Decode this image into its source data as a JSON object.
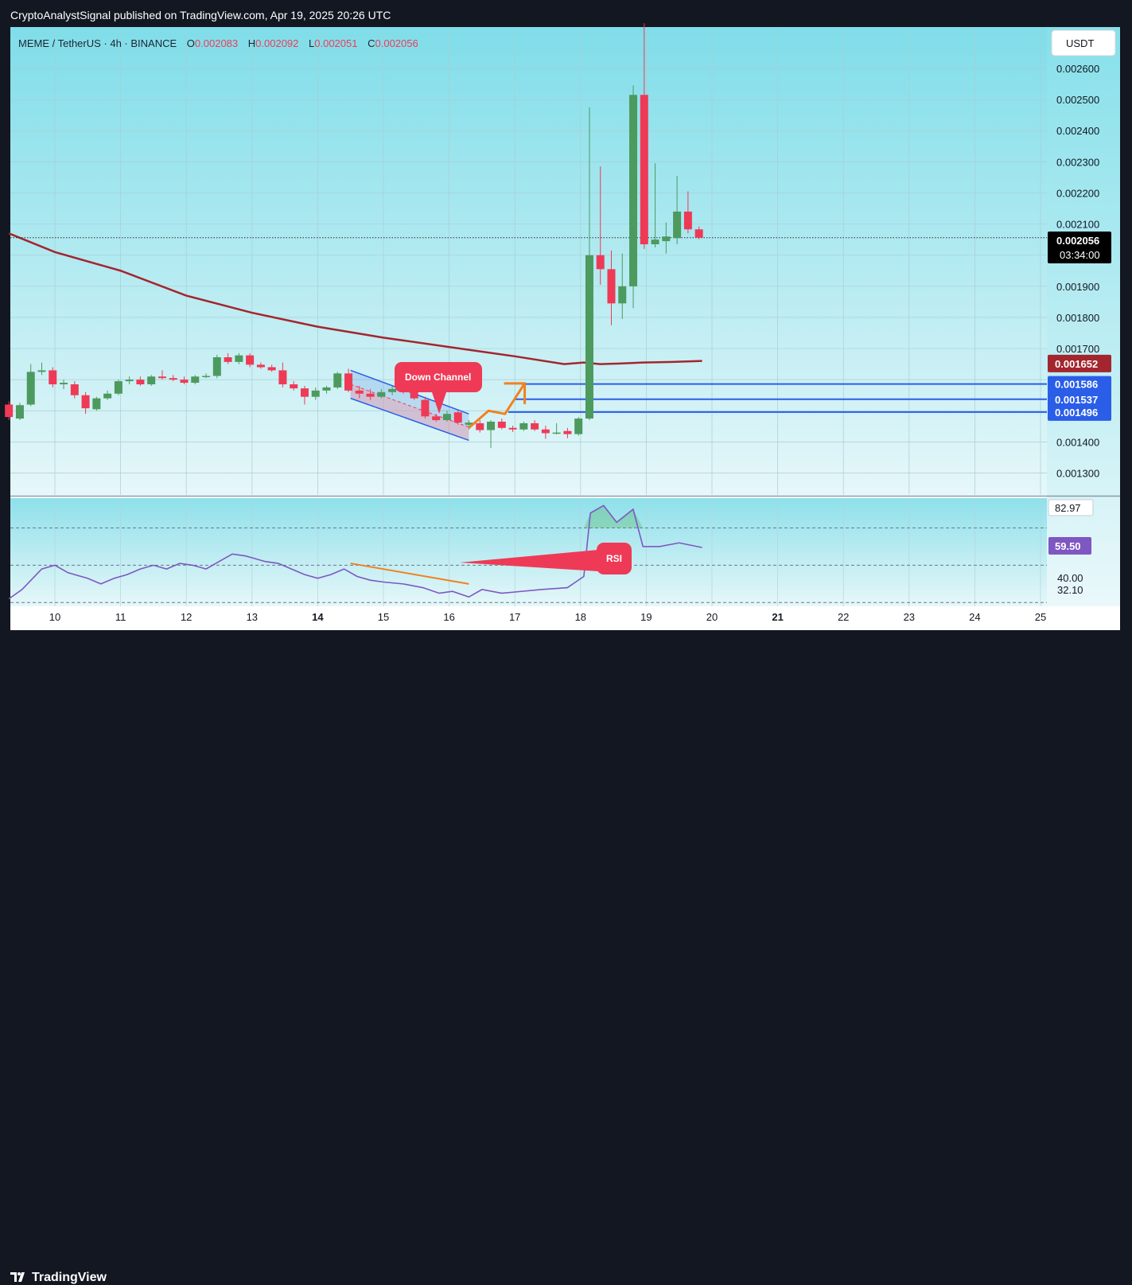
{
  "header": {
    "publisher": "CryptoAnalystSignal published on TradingView.com, Apr 19, 2025 20:26 UTC"
  },
  "footer": {
    "brand": "TradingView"
  },
  "legend": {
    "symbol": "MEME / TetherUS · 4h · BINANCE",
    "o_label": "O",
    "o_value": "0.002083",
    "h_label": "H",
    "h_value": "0.002092",
    "l_label": "L",
    "l_value": "0.002051",
    "c_label": "C",
    "c_value": "0.002056"
  },
  "currency_button": "USDT",
  "price_tag": {
    "value": "0.002056",
    "countdown": "03:34:00"
  },
  "colors": {
    "bull": "#4c9a5e",
    "bear": "#ee3a56",
    "ma": "#a3262e",
    "level": "#2a5ee8",
    "rsi": "#7e57c2",
    "background_top": "#7fdde9",
    "background_bottom": "#e8f7f9"
  },
  "annotations": {
    "down_channel": "Down Channel",
    "rsi": "RSI"
  },
  "chart_data": [
    {
      "type": "candlestick",
      "title": "MEME / TetherUS · 4h · BINANCE",
      "x_tick_labels": [
        "10",
        "11",
        "12",
        "13",
        "14",
        "15",
        "16",
        "17",
        "18",
        "19",
        "20",
        "21",
        "22",
        "23",
        "24",
        "25"
      ],
      "y_tick_labels": [
        "0.002600",
        "0.002500",
        "0.002400",
        "0.002300",
        "0.002200",
        "0.002100",
        "0.001900",
        "0.001800",
        "0.001700",
        "0.001400",
        "0.001300"
      ],
      "ylim": [
        0.001265,
        0.002725
      ],
      "x_start_day": 9.3,
      "candle_step_day": 0.1667,
      "candles": [
        {
          "o": 0.00152,
          "h": 0.00153,
          "l": 0.00147,
          "c": 0.00148
        },
        {
          "o": 0.001475,
          "h": 0.001525,
          "l": 0.00147,
          "c": 0.001518
        },
        {
          "o": 0.00152,
          "h": 0.00165,
          "l": 0.001515,
          "c": 0.001625
        },
        {
          "o": 0.001625,
          "h": 0.001655,
          "l": 0.001615,
          "c": 0.00163
        },
        {
          "o": 0.00163,
          "h": 0.00164,
          "l": 0.001575,
          "c": 0.001585
        },
        {
          "o": 0.001585,
          "h": 0.0016,
          "l": 0.00157,
          "c": 0.00159
        },
        {
          "o": 0.001585,
          "h": 0.001595,
          "l": 0.00154,
          "c": 0.00155
        },
        {
          "o": 0.00155,
          "h": 0.00156,
          "l": 0.00149,
          "c": 0.001508
        },
        {
          "o": 0.001505,
          "h": 0.001545,
          "l": 0.0015,
          "c": 0.00154
        },
        {
          "o": 0.00154,
          "h": 0.001565,
          "l": 0.001535,
          "c": 0.001555
        },
        {
          "o": 0.001555,
          "h": 0.0016,
          "l": 0.00155,
          "c": 0.001595
        },
        {
          "o": 0.001595,
          "h": 0.00161,
          "l": 0.001585,
          "c": 0.0016
        },
        {
          "o": 0.0016,
          "h": 0.00161,
          "l": 0.00158,
          "c": 0.001585
        },
        {
          "o": 0.001585,
          "h": 0.001615,
          "l": 0.00158,
          "c": 0.00161
        },
        {
          "o": 0.00161,
          "h": 0.00163,
          "l": 0.0016,
          "c": 0.001605
        },
        {
          "o": 0.001605,
          "h": 0.001615,
          "l": 0.001595,
          "c": 0.0016
        },
        {
          "o": 0.0016,
          "h": 0.00161,
          "l": 0.001585,
          "c": 0.00159
        },
        {
          "o": 0.00159,
          "h": 0.001615,
          "l": 0.001585,
          "c": 0.00161
        },
        {
          "o": 0.00161,
          "h": 0.00162,
          "l": 0.001605,
          "c": 0.001612
        },
        {
          "o": 0.001612,
          "h": 0.00168,
          "l": 0.001605,
          "c": 0.001672
        },
        {
          "o": 0.001672,
          "h": 0.001685,
          "l": 0.00165,
          "c": 0.001657
        },
        {
          "o": 0.001657,
          "h": 0.001685,
          "l": 0.00165,
          "c": 0.001678
        },
        {
          "o": 0.001678,
          "h": 0.001685,
          "l": 0.00164,
          "c": 0.001648
        },
        {
          "o": 0.001648,
          "h": 0.001655,
          "l": 0.001635,
          "c": 0.00164
        },
        {
          "o": 0.00164,
          "h": 0.001648,
          "l": 0.001625,
          "c": 0.00163
        },
        {
          "o": 0.00163,
          "h": 0.001655,
          "l": 0.001575,
          "c": 0.001585
        },
        {
          "o": 0.001585,
          "h": 0.001595,
          "l": 0.001565,
          "c": 0.001572
        },
        {
          "o": 0.001572,
          "h": 0.00158,
          "l": 0.00152,
          "c": 0.001545
        },
        {
          "o": 0.001545,
          "h": 0.001575,
          "l": 0.001535,
          "c": 0.001565
        },
        {
          "o": 0.001565,
          "h": 0.00158,
          "l": 0.001555,
          "c": 0.001575
        },
        {
          "o": 0.001575,
          "h": 0.001625,
          "l": 0.00157,
          "c": 0.00162
        },
        {
          "o": 0.00162,
          "h": 0.001635,
          "l": 0.00156,
          "c": 0.001565
        },
        {
          "o": 0.001565,
          "h": 0.00158,
          "l": 0.00154,
          "c": 0.001555
        },
        {
          "o": 0.001555,
          "h": 0.00157,
          "l": 0.001535,
          "c": 0.001545
        },
        {
          "o": 0.001545,
          "h": 0.00157,
          "l": 0.00154,
          "c": 0.00156
        },
        {
          "o": 0.00156,
          "h": 0.00158,
          "l": 0.00155,
          "c": 0.00157
        },
        {
          "o": 0.00157,
          "h": 0.00158,
          "l": 0.001555,
          "c": 0.00156
        },
        {
          "o": 0.00156,
          "h": 0.00157,
          "l": 0.001535,
          "c": 0.00154
        },
        {
          "o": 0.001535,
          "h": 0.001545,
          "l": 0.001475,
          "c": 0.001482
        },
        {
          "o": 0.001482,
          "h": 0.00149,
          "l": 0.001465,
          "c": 0.00147
        },
        {
          "o": 0.00147,
          "h": 0.0015,
          "l": 0.001465,
          "c": 0.00149
        },
        {
          "o": 0.001495,
          "h": 0.0015,
          "l": 0.001455,
          "c": 0.001462
        },
        {
          "o": 0.001455,
          "h": 0.00147,
          "l": 0.00144,
          "c": 0.001462
        },
        {
          "o": 0.00146,
          "h": 0.00147,
          "l": 0.00143,
          "c": 0.001438
        },
        {
          "o": 0.001438,
          "h": 0.00147,
          "l": 0.00138,
          "c": 0.001465
        },
        {
          "o": 0.001465,
          "h": 0.001475,
          "l": 0.00144,
          "c": 0.001445
        },
        {
          "o": 0.001445,
          "h": 0.001452,
          "l": 0.001432,
          "c": 0.00144
        },
        {
          "o": 0.00144,
          "h": 0.001465,
          "l": 0.001435,
          "c": 0.00146
        },
        {
          "o": 0.00146,
          "h": 0.00147,
          "l": 0.001435,
          "c": 0.00144
        },
        {
          "o": 0.00144,
          "h": 0.001452,
          "l": 0.00141,
          "c": 0.001428
        },
        {
          "o": 0.001428,
          "h": 0.00146,
          "l": 0.001424,
          "c": 0.00143
        },
        {
          "o": 0.001435,
          "h": 0.001445,
          "l": 0.001412,
          "c": 0.001425
        },
        {
          "o": 0.001425,
          "h": 0.00148,
          "l": 0.00142,
          "c": 0.001475
        },
        {
          "o": 0.001475,
          "h": 0.002475,
          "l": 0.00147,
          "c": 0.002
        },
        {
          "o": 0.002,
          "h": 0.002285,
          "l": 0.001905,
          "c": 0.001955
        },
        {
          "o": 0.001955,
          "h": 0.002015,
          "l": 0.001775,
          "c": 0.001845
        },
        {
          "o": 0.001845,
          "h": 0.002005,
          "l": 0.001795,
          "c": 0.0019
        },
        {
          "o": 0.0019,
          "h": 0.002545,
          "l": 0.00183,
          "c": 0.002515
        },
        {
          "o": 0.002515,
          "h": 0.002745,
          "l": 0.00202,
          "c": 0.002035
        },
        {
          "o": 0.002035,
          "h": 0.002295,
          "l": 0.002025,
          "c": 0.00205
        },
        {
          "o": 0.002045,
          "h": 0.002105,
          "l": 0.002005,
          "c": 0.00206
        },
        {
          "o": 0.002055,
          "h": 0.002255,
          "l": 0.002035,
          "c": 0.00214
        },
        {
          "o": 0.00214,
          "h": 0.002205,
          "l": 0.00207,
          "c": 0.002083
        },
        {
          "o": 0.002083,
          "h": 0.002092,
          "l": 0.002051,
          "c": 0.002056
        }
      ],
      "moving_average": {
        "points": [
          [
            9.3,
            0.00207
          ],
          [
            10.0,
            0.00201
          ],
          [
            11.0,
            0.00195
          ],
          [
            12.0,
            0.00187
          ],
          [
            13.0,
            0.001815
          ],
          [
            14.0,
            0.00177
          ],
          [
            15.0,
            0.001735
          ],
          [
            16.0,
            0.001705
          ],
          [
            17.0,
            0.001675
          ],
          [
            17.75,
            0.00165
          ],
          [
            18.05,
            0.001655
          ],
          [
            18.3,
            0.00165
          ],
          [
            18.6,
            0.001652
          ],
          [
            18.95,
            0.001655
          ],
          [
            19.4,
            0.001657
          ],
          [
            19.85,
            0.00166
          ]
        ],
        "label_value": "0.001652"
      },
      "horizontal_levels": [
        {
          "value": "0.001586",
          "price": 0.001586,
          "from_day": 17.1
        },
        {
          "value": "0.001537",
          "price": 0.001537,
          "from_day": 17.0
        },
        {
          "value": "0.001496",
          "price": 0.001496,
          "from_day": 16.9
        }
      ],
      "down_channel": {
        "upper": [
          [
            14.5,
            0.00163
          ],
          [
            16.3,
            0.00149
          ]
        ],
        "lower": [
          [
            14.5,
            0.00154
          ],
          [
            16.3,
            0.001405
          ]
        ]
      },
      "projection_arrow": [
        [
          16.3,
          0.001445
        ],
        [
          16.6,
          0.0015
        ],
        [
          16.85,
          0.00149
        ],
        [
          17.15,
          0.001588
        ]
      ]
    },
    {
      "type": "line",
      "series": [
        {
          "name": "RSI",
          "points": [
            [
              9.3,
              32
            ],
            [
              9.5,
              37
            ],
            [
              9.8,
              48
            ],
            [
              10.0,
              50
            ],
            [
              10.2,
              46
            ],
            [
              10.5,
              43
            ],
            [
              10.7,
              40
            ],
            [
              10.9,
              43
            ],
            [
              11.1,
              45
            ],
            [
              11.3,
              48
            ],
            [
              11.5,
              50
            ],
            [
              11.7,
              48
            ],
            [
              11.9,
              51
            ],
            [
              12.1,
              50
            ],
            [
              12.3,
              48
            ],
            [
              12.5,
              52
            ],
            [
              12.7,
              56
            ],
            [
              12.9,
              55
            ],
            [
              13.0,
              54
            ],
            [
              13.2,
              52
            ],
            [
              13.4,
              51
            ],
            [
              13.6,
              48
            ],
            [
              13.8,
              45
            ],
            [
              14.0,
              43
            ],
            [
              14.2,
              45
            ],
            [
              14.4,
              48
            ],
            [
              14.6,
              44
            ],
            [
              14.8,
              42
            ],
            [
              15.0,
              41
            ],
            [
              15.3,
              40
            ],
            [
              15.6,
              38
            ],
            [
              15.85,
              35
            ],
            [
              16.05,
              36
            ],
            [
              16.3,
              33
            ],
            [
              16.5,
              37
            ],
            [
              16.8,
              35
            ],
            [
              17.1,
              36
            ],
            [
              17.4,
              37
            ],
            [
              17.8,
              38
            ],
            [
              18.05,
              44
            ],
            [
              18.15,
              78
            ],
            [
              18.35,
              82
            ],
            [
              18.55,
              73
            ],
            [
              18.8,
              80
            ],
            [
              18.95,
              60
            ],
            [
              19.2,
              60
            ],
            [
              19.5,
              62
            ],
            [
              19.85,
              59.5
            ]
          ]
        }
      ],
      "ylim": [
        28,
        86
      ],
      "levels": [
        70,
        50,
        30
      ],
      "y_tick_labels": [
        "82.97",
        "59.50",
        "40.00",
        "32.10"
      ],
      "current_value": "59.50",
      "trendline": [
        [
          14.5,
          51
        ],
        [
          16.3,
          40
        ]
      ]
    }
  ]
}
